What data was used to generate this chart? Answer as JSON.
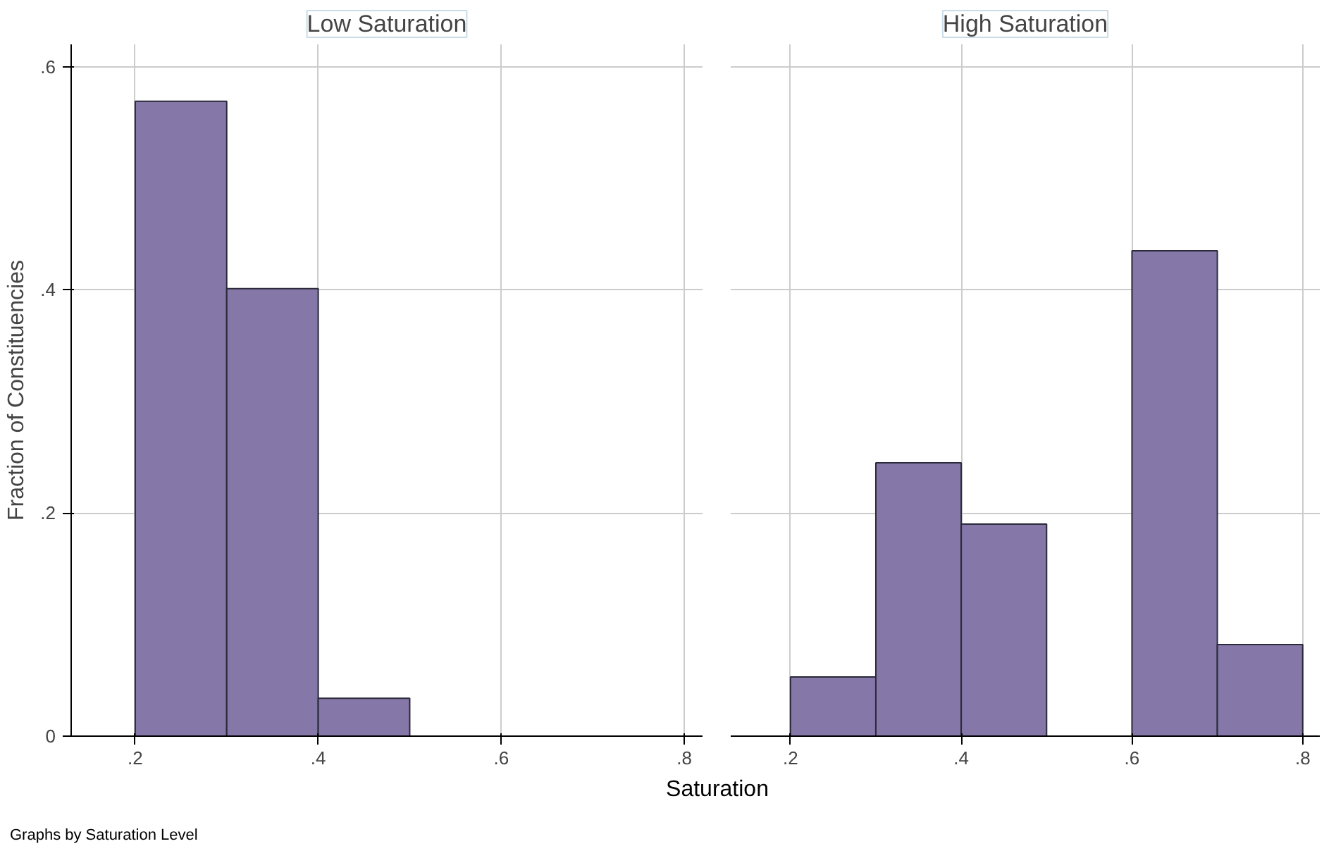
{
  "chart_data": [
    {
      "type": "histogram",
      "title": "Low Saturation",
      "xlabel": "Saturation",
      "ylabel": "Fraction of Constituencies",
      "annotations": [
        "Graphs by Saturation Level"
      ],
      "bins": [
        0.2,
        0.3,
        0.4,
        0.5
      ],
      "values": [
        0.569,
        0.401,
        0.034
      ],
      "color": "#8677a9",
      "xlim": [
        0.13,
        0.82
      ],
      "ylim": [
        0,
        0.62
      ],
      "xticks": [
        {
          "value": 0.2,
          "label": ".2"
        },
        {
          "value": 0.4,
          "label": ".4"
        },
        {
          "value": 0.6,
          "label": ".6"
        },
        {
          "value": 0.8,
          "label": ".8"
        }
      ],
      "yticks": [
        0,
        {
          "value": 0.2,
          "label": ".2"
        },
        {
          "value": 0.4,
          "label": ".4"
        },
        {
          "value": 0.6,
          "label": ".6"
        }
      ],
      "grid": true
    },
    {
      "type": "histogram",
      "title": "High Saturation",
      "bins": [
        0.2,
        0.3,
        0.4,
        0.5,
        0.6,
        0.7,
        0.8
      ],
      "values": [
        0.053,
        0.245,
        0.19,
        0,
        0.435,
        0.082
      ],
      "color": "#8677a9",
      "xlim": [
        0.13,
        0.82
      ],
      "ylim": [
        0,
        0.62
      ],
      "xticks": [
        {
          "value": 0.2,
          "label": ".2"
        },
        {
          "value": 0.4,
          "label": ".4"
        },
        {
          "value": 0.6,
          "label": ".6"
        },
        {
          "value": 0.8,
          "label": ".8"
        }
      ],
      "yticks": [
        {
          "value": 0,
          "label": null
        },
        {
          "value": 0.2,
          "label": null
        },
        {
          "value": 0.4,
          "label": null
        },
        {
          "value": 0.6,
          "label": null
        }
      ],
      "grid": true,
      "tick_labels": "x"
    }
  ]
}
